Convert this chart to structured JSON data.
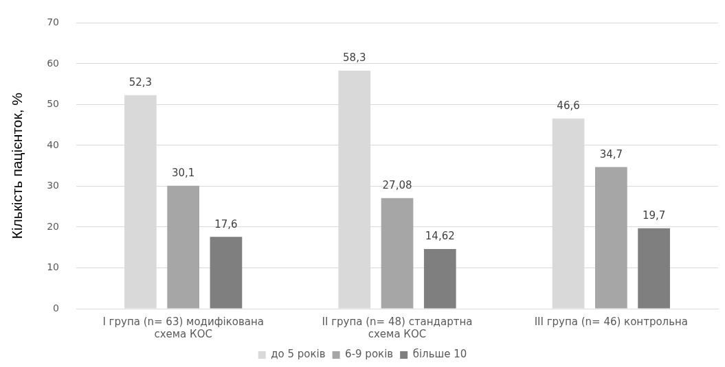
{
  "chart_data": {
    "type": "bar",
    "ylabel": "Кількість пацієнток, %",
    "categories": [
      "I група (n= 63) модифікована схема КОС",
      "II група (n= 48) стандартна схема КОС",
      "III група (n= 46) контрольна"
    ],
    "series": [
      {
        "name": "до 5 років",
        "color": "#d9d9d9",
        "values": [
          52.3,
          58.3,
          46.6
        ],
        "value_labels": [
          "52,3",
          "58,3",
          "46,6"
        ]
      },
      {
        "name": "6-9 років",
        "color": "#a6a6a6",
        "values": [
          30.1,
          27.08,
          34.7
        ],
        "value_labels": [
          "30,1",
          "27,08",
          "34,7"
        ]
      },
      {
        "name": "більше 10",
        "color": "#7f7f7f",
        "values": [
          17.6,
          14.62,
          19.7
        ],
        "value_labels": [
          "17,6",
          "14,62",
          "19,7"
        ]
      }
    ],
    "ylim": [
      0,
      70
    ],
    "yticks": [
      0,
      10,
      20,
      30,
      40,
      50,
      60,
      70
    ],
    "grid": "y",
    "legend": "bottom"
  }
}
